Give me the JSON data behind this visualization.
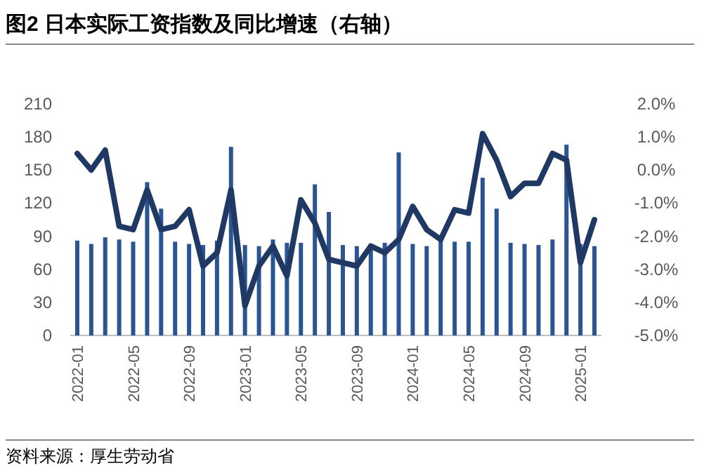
{
  "chart_data": {
    "type": "bar",
    "title": "图2  日本实际工资指数及同比增速（右轴）",
    "categories": [
      "2022-01",
      null,
      null,
      null,
      "2022-05",
      null,
      null,
      null,
      "2022-09",
      null,
      null,
      null,
      "2023-01",
      null,
      null,
      null,
      "2023-05",
      null,
      null,
      null,
      "2023-09",
      null,
      null,
      null,
      "2024-01",
      null,
      null,
      null,
      "2024-05",
      null,
      null,
      null,
      "2024-09",
      null,
      null,
      null,
      "2025-01",
      null
    ],
    "series": [
      {
        "color": "#2a5592",
        "values": [
          86,
          83,
          89,
          87,
          85,
          139,
          115,
          85,
          83,
          82,
          86,
          171,
          82,
          81,
          87,
          84,
          84,
          137,
          112,
          82,
          81,
          83,
          84,
          166,
          83,
          81,
          86,
          85,
          85,
          143,
          115,
          84,
          83,
          82,
          87,
          173,
          83,
          81
        ]
      },
      {
        "type": "line",
        "axis": "y2",
        "color": "#1f3864",
        "values": [
          0.5,
          0.0,
          0.6,
          -1.7,
          -1.8,
          -0.6,
          -1.8,
          -1.7,
          -1.2,
          -2.9,
          -2.5,
          -0.6,
          -4.1,
          -2.9,
          -2.3,
          -3.2,
          -0.9,
          -1.6,
          -2.7,
          -2.8,
          -2.9,
          -2.3,
          -2.5,
          -2.1,
          -1.1,
          -1.8,
          -2.1,
          -1.2,
          -1.3,
          1.1,
          0.3,
          -0.8,
          -0.4,
          -0.4,
          0.5,
          0.3,
          -2.8,
          -1.5
        ]
      }
    ],
    "ylim": [
      0,
      210
    ],
    "yticks": [
      0,
      30,
      60,
      90,
      120,
      150,
      180,
      210
    ],
    "y2lim": [
      -5,
      2
    ],
    "y2ticks": [
      {
        "value": -5,
        "label": "-5.0%"
      },
      {
        "value": -4,
        "label": "-4.0%"
      },
      {
        "value": -3,
        "label": "-3.0%"
      },
      {
        "value": -2,
        "label": "-2.0%"
      },
      {
        "value": -1,
        "label": "-1.0%"
      },
      {
        "value": 0,
        "label": "0.0%"
      },
      {
        "value": 1,
        "label": "1.0%"
      },
      {
        "value": 2,
        "label": "2.0%"
      }
    ],
    "annotations": [
      "资料来源：厚生劳动省"
    ]
  }
}
